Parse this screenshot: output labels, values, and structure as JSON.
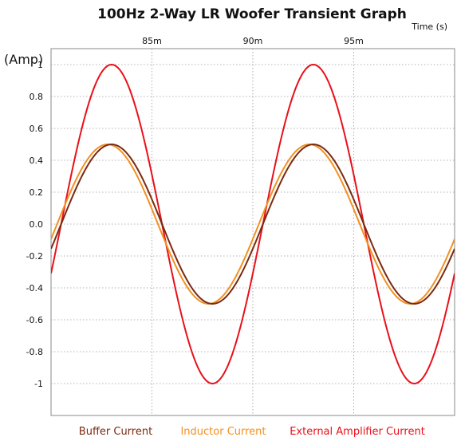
{
  "chart_data": {
    "type": "line",
    "title": "100Hz 2-Way LR Woofer Transient Graph",
    "xlabel": "Time   (s)",
    "ylabel": "(Amp)",
    "x_tick_labels": [
      "85m",
      "90m",
      "95m"
    ],
    "x_ticks": [
      0.085,
      0.09,
      0.095
    ],
    "xlim": [
      0.08,
      0.1
    ],
    "y_ticks": [
      1,
      0.8,
      0.6,
      0.4,
      0.2,
      0.0,
      -0.2,
      -0.4,
      -0.6,
      -0.8,
      -1
    ],
    "y_tick_labels": [
      "1",
      "0.8",
      "0.6",
      "0.4",
      "0.2",
      "0.0",
      "-0.2",
      "-0.4",
      "-0.6",
      "-0.8",
      "-1"
    ],
    "ylim": [
      -1.2,
      1.1
    ],
    "grid": true,
    "legend_position": "bottom",
    "series": [
      {
        "name": "Buffer Current",
        "color": "#7a2a10",
        "amplitude": 0.5,
        "frequency_hz": 100,
        "peak_time": 0.083,
        "sample_step": 0.0001
      },
      {
        "name": "Inductor Current",
        "color": "#f39020",
        "amplitude": 0.5,
        "frequency_hz": 100,
        "peak_time": 0.0828,
        "sample_step": 0.0001
      },
      {
        "name": "External Amplifier Current",
        "color": "#e8101a",
        "amplitude": 1.0,
        "frequency_hz": 100,
        "peak_time": 0.083,
        "sample_step": 0.0001
      }
    ]
  }
}
